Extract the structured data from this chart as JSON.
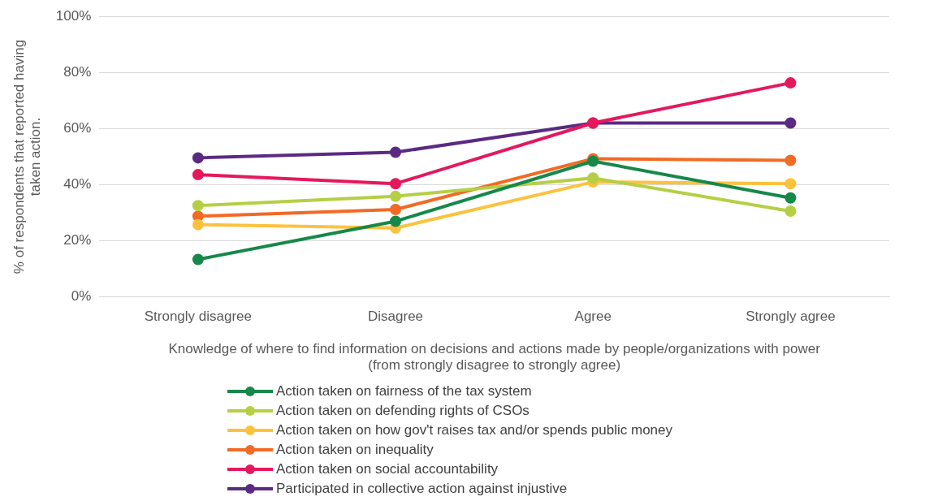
{
  "chart_data": {
    "type": "line",
    "xlabel": "Knowledge of where to find information on decisions and actions made by people/organizations with power (from strongly disagree to strongly agree)",
    "ylabel": "% of respondents that reported having taken action.",
    "categories": [
      "Strongly disagree",
      "Disagree",
      "Agree",
      "Strongly agree"
    ],
    "ylim": [
      0,
      100
    ],
    "yticks": [
      {
        "value": 0,
        "label": "0%"
      },
      {
        "value": 20,
        "label": "20%"
      },
      {
        "value": 40,
        "label": "40%"
      },
      {
        "value": 60,
        "label": "60%"
      },
      {
        "value": 80,
        "label": "80%"
      },
      {
        "value": 100,
        "label": "100%"
      }
    ],
    "grid": "y",
    "legend": "bottom",
    "marker": "circle",
    "line_style": "solid",
    "series": [
      {
        "name": "Action taken on fairness of the tax system",
        "color": "#15884a",
        "values": [
          13.4,
          27,
          48.4,
          35.3
        ]
      },
      {
        "name": "Action taken on defending rights of CSOs",
        "color": "#b5cf45",
        "values": [
          32.6,
          35.9,
          42.4,
          30.6
        ]
      },
      {
        "name": "Action taken on how gov't raises tax and/or spends public money",
        "color": "#fcc23e",
        "values": [
          25.8,
          24.6,
          41,
          40.4
        ]
      },
      {
        "name": "Action taken on inequality",
        "color": "#f26a24",
        "values": [
          28.8,
          31.2,
          49.3,
          48.7
        ]
      },
      {
        "name": "Action taken on social accountability",
        "color": "#e5185d",
        "values": [
          43.6,
          40.4,
          62,
          76.3
        ]
      },
      {
        "name": "Participated in collective action against injustive",
        "color": "#5b2a82",
        "values": [
          49.6,
          51.6,
          62,
          62
        ]
      }
    ]
  }
}
